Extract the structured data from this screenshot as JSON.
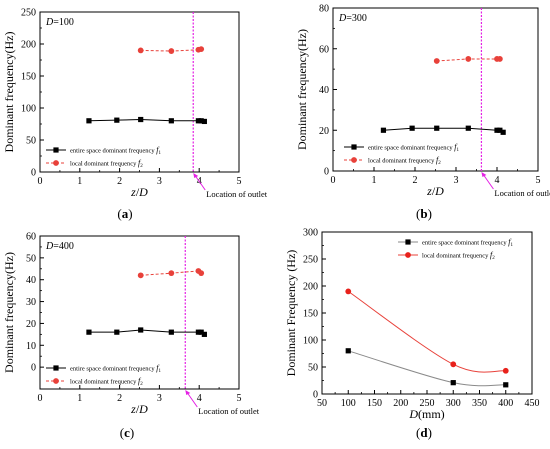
{
  "chart_data": [
    {
      "type": "line",
      "panel_label": "(a)",
      "annotation": "D=100",
      "xlabel": "z/D",
      "ylabel": "Dominant frequency(Hz)",
      "xlim": [
        0,
        5
      ],
      "ylim": [
        0,
        250
      ],
      "xticks": [
        0,
        1,
        2,
        3,
        4,
        5
      ],
      "yticks": [
        0,
        50,
        100,
        150,
        200,
        250
      ],
      "outlet_x": 3.85,
      "outlet_label": "Location of outlet",
      "legend_position": "lower-left",
      "series": [
        {
          "name": "entire space dominant frequency f1",
          "legend_text": "entire space dominant frequency ",
          "legend_sym": "f",
          "legend_sub": "1",
          "marker": "square",
          "color": "#000000",
          "dash": "solid",
          "x": [
            1.23,
            1.93,
            2.53,
            3.3,
            3.98,
            4.05,
            4.13
          ],
          "y": [
            80,
            81,
            82,
            80,
            80,
            80,
            79
          ]
        },
        {
          "name": "local dominant frequency f2",
          "legend_text": "local dominant frequency ",
          "legend_sym": "f",
          "legend_sub": "2",
          "marker": "circle",
          "color": "#e8413a",
          "dash": "dashed",
          "x": [
            2.53,
            3.3,
            3.98,
            4.05
          ],
          "y": [
            190,
            189,
            191,
            192
          ]
        }
      ]
    },
    {
      "type": "line",
      "panel_label": "(b)",
      "annotation": "D=300",
      "xlabel": "z/D",
      "ylabel": "Dominant frequency(Hz)",
      "xlim": [
        0,
        5
      ],
      "ylim": [
        0,
        80
      ],
      "xticks": [
        0,
        1,
        2,
        3,
        4,
        5
      ],
      "yticks": [
        0,
        20,
        40,
        60,
        80
      ],
      "outlet_x": 3.62,
      "outlet_label": "Location of outlet",
      "legend_position": "lower-left",
      "series": [
        {
          "name": "entire space dominant frequency f1",
          "legend_text": "entire space dominant frequency ",
          "legend_sym": "f",
          "legend_sub": "1",
          "marker": "square",
          "color": "#000000",
          "dash": "solid",
          "x": [
            1.23,
            1.93,
            2.53,
            3.3,
            4.0,
            4.07,
            4.15
          ],
          "y": [
            20,
            21,
            21,
            21,
            20,
            20,
            19
          ]
        },
        {
          "name": "local dominant frequency f2",
          "legend_text": "local dominant frequency ",
          "legend_sym": "f",
          "legend_sub": "2",
          "marker": "circle",
          "color": "#e8413a",
          "dash": "dashed",
          "x": [
            2.53,
            3.3,
            4.0,
            4.07
          ],
          "y": [
            54,
            55,
            55,
            55
          ]
        }
      ]
    },
    {
      "type": "line",
      "panel_label": "(c)",
      "annotation": "D=400",
      "xlabel": "z/D",
      "ylabel": "Dominant frequency(Hz)",
      "xlim": [
        0,
        5
      ],
      "ylim": [
        -10,
        60
      ],
      "xticks": [
        0,
        1,
        2,
        3,
        4,
        5
      ],
      "yticks": [
        0,
        10,
        20,
        30,
        40,
        50,
        60
      ],
      "outlet_x": 3.65,
      "outlet_label": "Location of outlet",
      "legend_position": "lower-left",
      "series": [
        {
          "name": "entire space dominant frequency f1",
          "legend_text": "entire space dominant frequency ",
          "legend_sym": "f",
          "legend_sub": "1",
          "marker": "square",
          "color": "#000000",
          "dash": "solid",
          "x": [
            1.23,
            1.93,
            2.53,
            3.3,
            3.98,
            4.05,
            4.13
          ],
          "y": [
            16,
            16,
            17,
            16,
            16,
            16,
            15
          ]
        },
        {
          "name": "local dominant frequency f2",
          "legend_text": "local dominant frequency ",
          "legend_sym": "f",
          "legend_sub": "2",
          "marker": "circle",
          "color": "#e8413a",
          "dash": "dashed",
          "x": [
            2.53,
            3.3,
            3.98,
            4.05
          ],
          "y": [
            42,
            43,
            44,
            43
          ]
        }
      ]
    },
    {
      "type": "line",
      "panel_label": "(d)",
      "annotation": "",
      "xlabel": "D(mm)",
      "ylabel": "Dominant Frequency (Hz)",
      "xlim": [
        50,
        450
      ],
      "ylim": [
        0,
        300
      ],
      "xticks": [
        50,
        100,
        150,
        200,
        250,
        300,
        350,
        400,
        450
      ],
      "yticks": [
        0,
        50,
        100,
        150,
        200,
        250,
        300
      ],
      "legend_position": "top-right",
      "series": [
        {
          "name": "entire space dominant frequency f1",
          "legend_text": "entire space dominant frequency ",
          "legend_sym": "f",
          "legend_sub": "1",
          "marker": "square",
          "color": "#000000",
          "line_color": "#8a8a8a",
          "dash": "solid",
          "x": [
            100,
            300,
            400
          ],
          "y": [
            80,
            21,
            17
          ]
        },
        {
          "name": "local dominant frequency f2",
          "legend_text": "local dominant frequency ",
          "legend_sym": "f",
          "legend_sub": "2",
          "marker": "circle",
          "color": "#e8211b",
          "line_color": "#e8413a",
          "dash": "solid",
          "x": [
            100,
            300,
            400
          ],
          "y": [
            190,
            55,
            43
          ]
        }
      ]
    }
  ]
}
